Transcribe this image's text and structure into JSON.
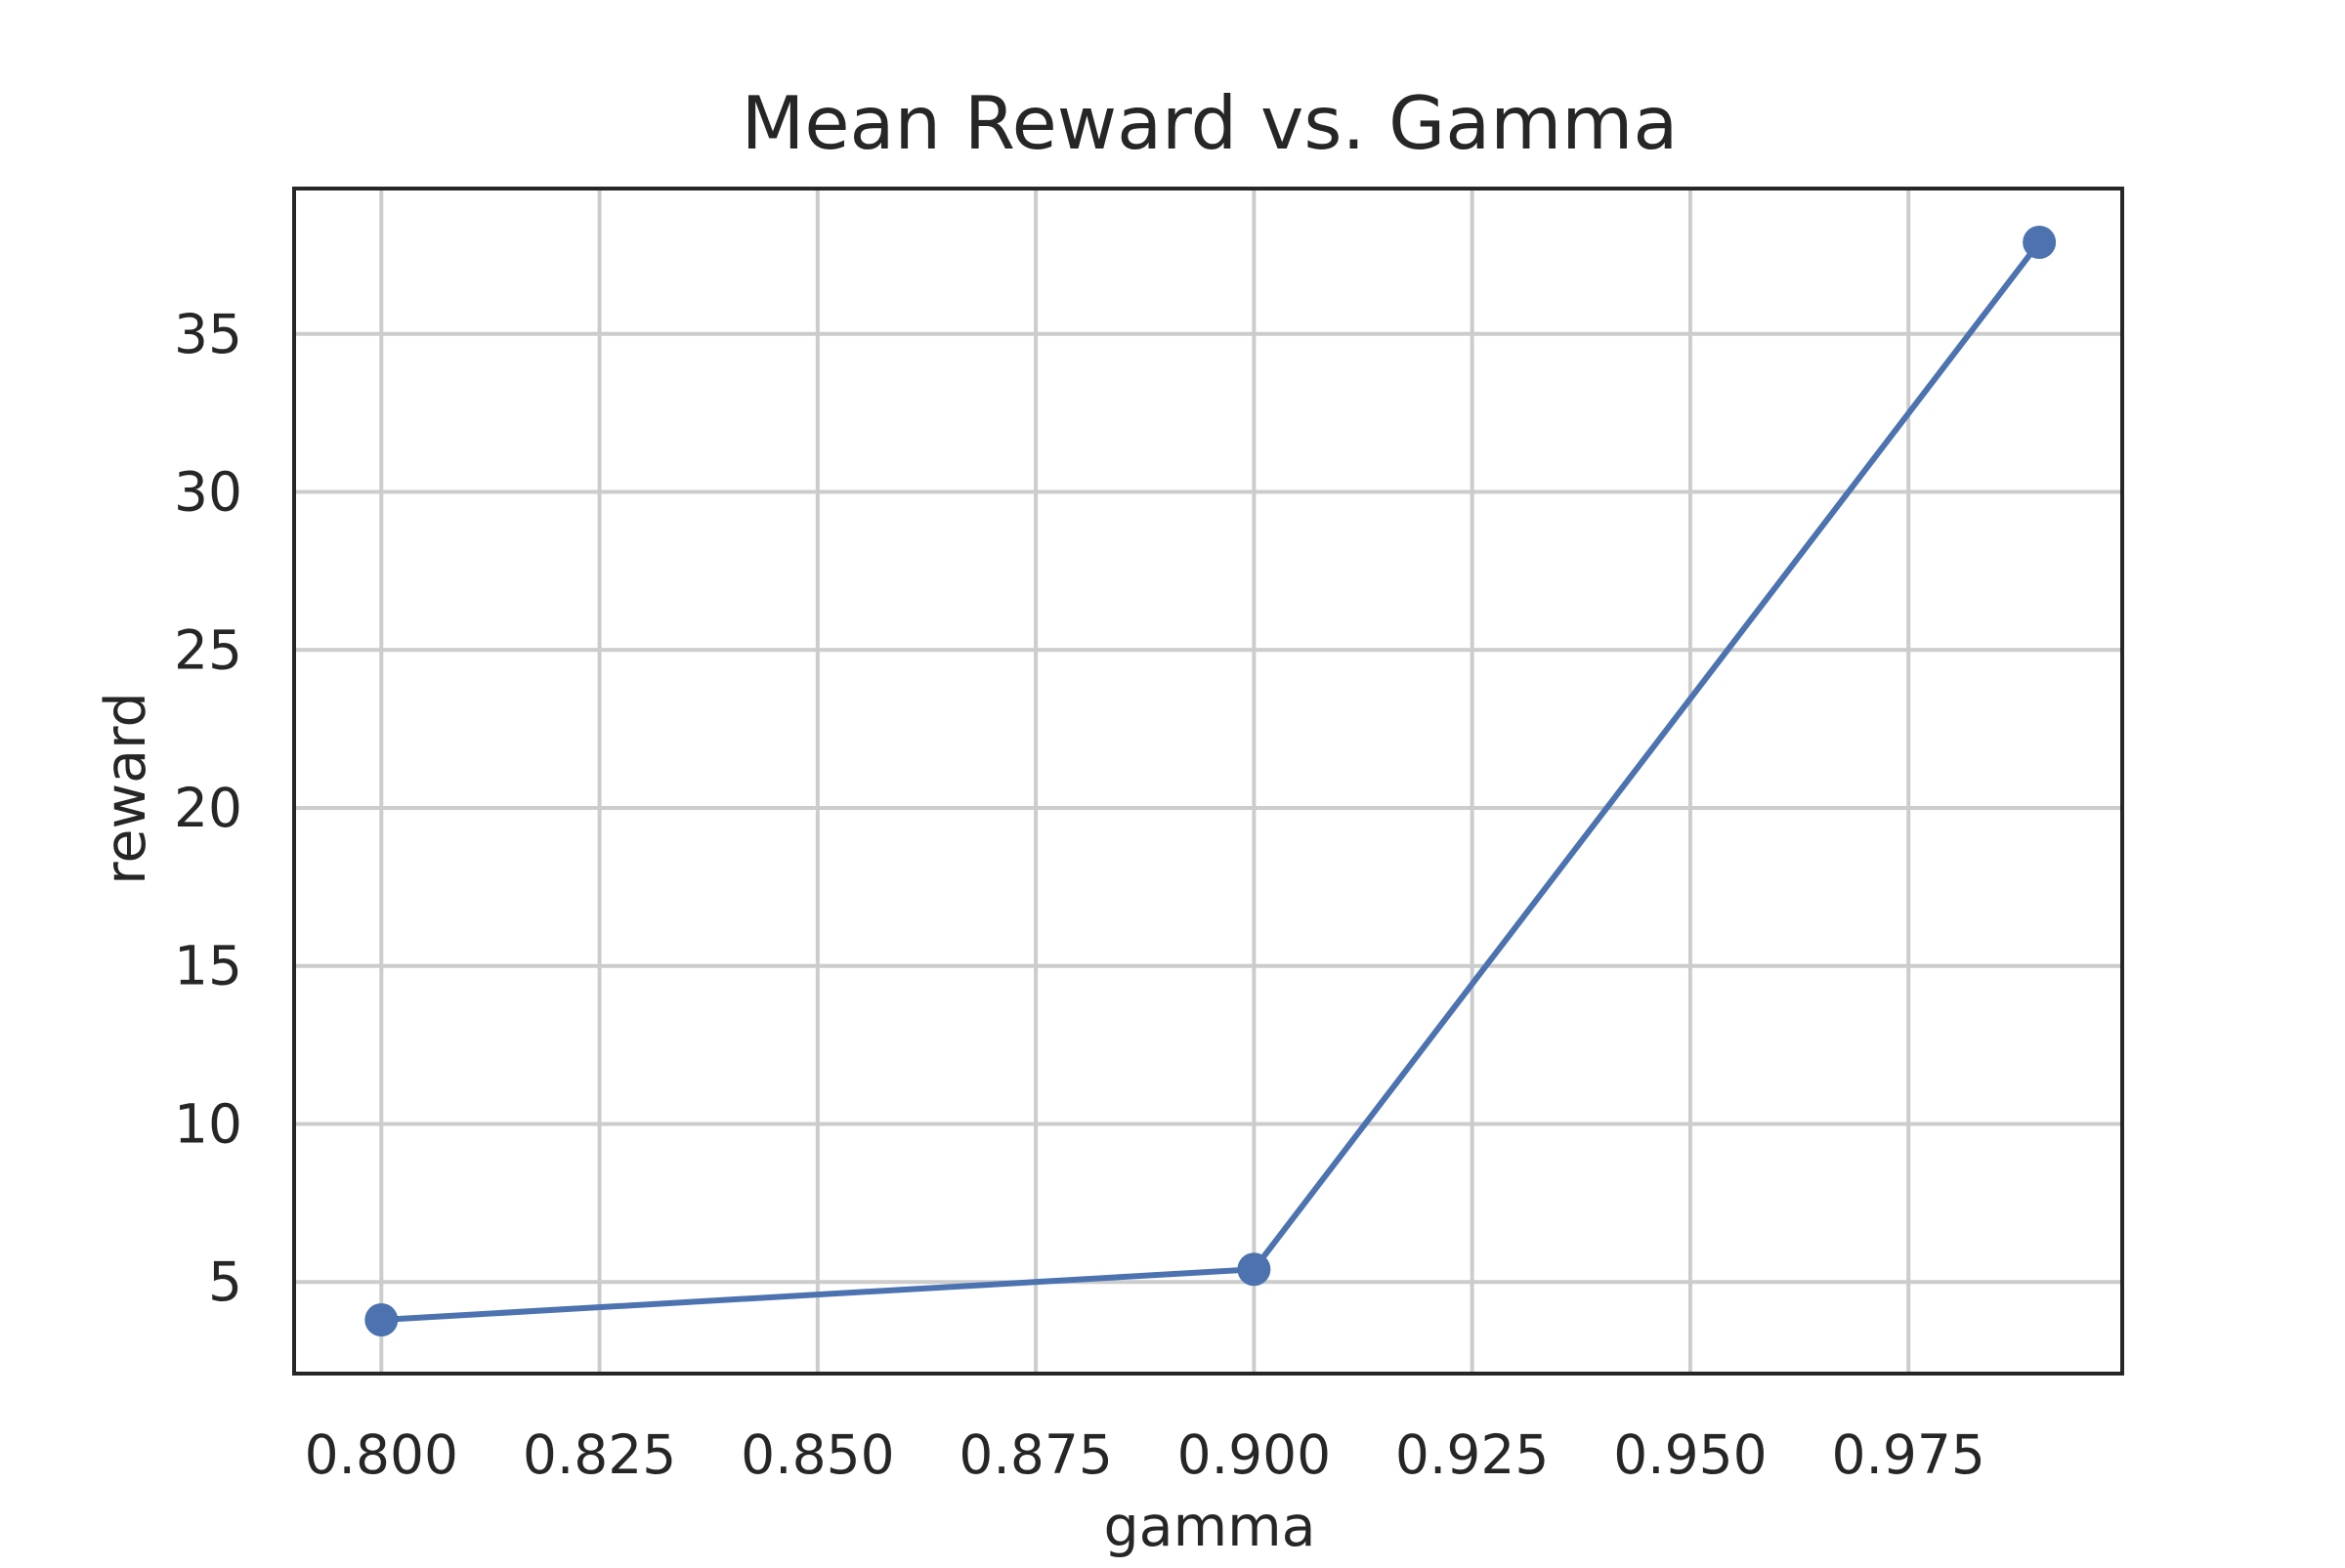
{
  "chart_data": {
    "type": "line",
    "title": "Mean Reward vs. Gamma",
    "xlabel": "gamma",
    "ylabel": "reward",
    "x": [
      0.8,
      0.9,
      0.99
    ],
    "series": [
      {
        "values": [
          3.8,
          5.4,
          37.9
        ],
        "color": "#4c72b0"
      }
    ],
    "xlim": [
      0.79,
      0.9995
    ],
    "ylim": [
      2.1,
      39.6
    ],
    "xticks": [
      0.8,
      0.825,
      0.85,
      0.875,
      0.9,
      0.925,
      0.95,
      0.975
    ],
    "xtick_labels": [
      "0.800",
      "0.825",
      "0.850",
      "0.875",
      "0.900",
      "0.925",
      "0.950",
      "0.975"
    ],
    "yticks": [
      5,
      10,
      15,
      20,
      25,
      30,
      35
    ],
    "ytick_labels": [
      "5",
      "10",
      "15",
      "20",
      "25",
      "30",
      "35"
    ],
    "grid": true,
    "grid_color": "#cccccc",
    "frame_color": "#262626"
  }
}
